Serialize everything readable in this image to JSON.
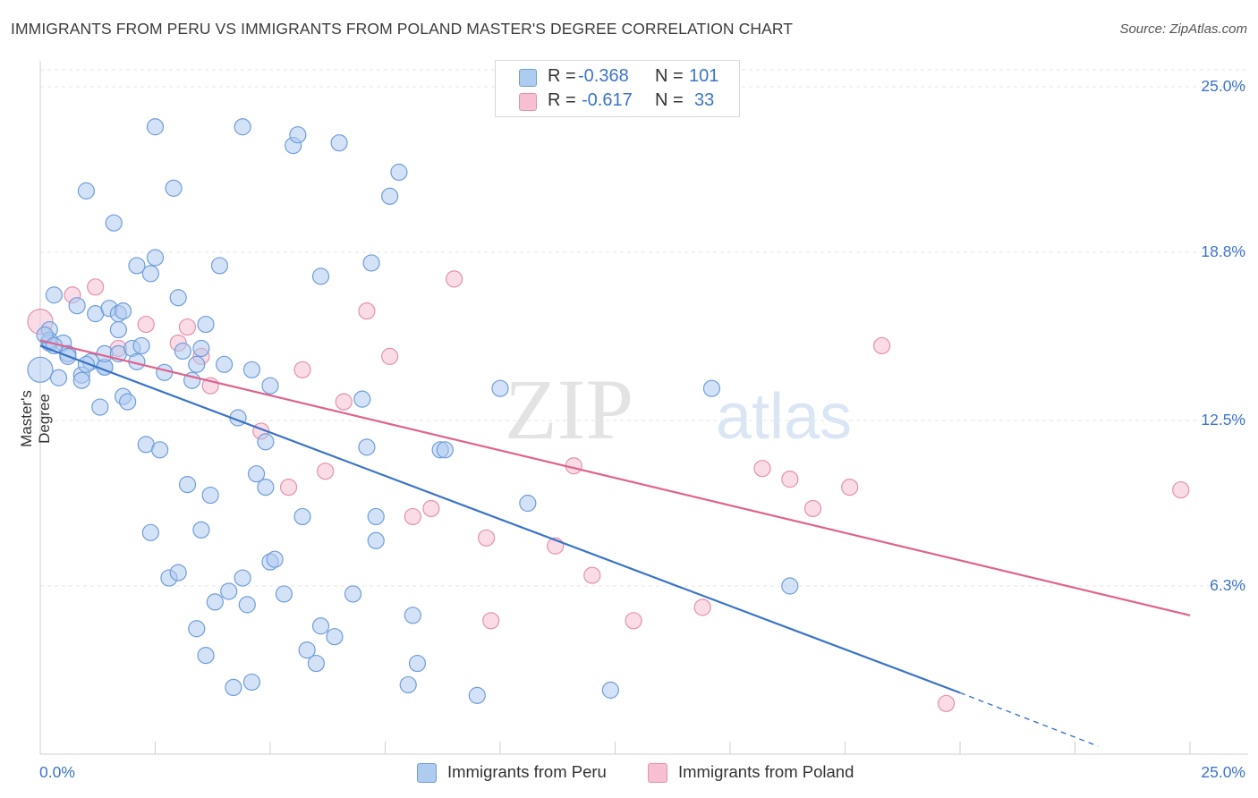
{
  "title": "IMMIGRANTS FROM PERU VS IMMIGRANTS FROM POLAND MASTER'S DEGREE CORRELATION CHART",
  "source": "Source: ZipAtlas.com",
  "watermark": "ZIPatlas",
  "colors": {
    "peru": "#3b74c8",
    "peru_fill": "#aecbf0",
    "poland": "#e0628e",
    "poland_fill": "#f6bfd2",
    "accent": "#3b74c8"
  },
  "legend": {
    "peru": {
      "r_label": "R =",
      "r_value": "-0.368",
      "n_label": "N =",
      "n_value": "101"
    },
    "poland": {
      "r_label": "R =",
      "r_value": "-0.617",
      "n_label": "N =",
      "n_value": "33"
    }
  },
  "chart_data": {
    "type": "scatter",
    "title": "IMMIGRANTS FROM PERU VS IMMIGRANTS FROM POLAND MASTER'S DEGREE CORRELATION CHART",
    "xlabel": "",
    "ylabel": "Master's Degree",
    "xlim": [
      0,
      25
    ],
    "ylim": [
      0,
      26.5
    ],
    "x_tick_labels": [
      "0.0%",
      "25.0%"
    ],
    "y_ticks": [
      6.3,
      12.5,
      18.8,
      25.0
    ],
    "y_tick_labels": [
      "6.3%",
      "12.5%",
      "18.8%",
      "25.0%"
    ],
    "grid": "horizontal dashed",
    "legend_position": "top-center",
    "series": [
      {
        "name": "Immigrants from Peru",
        "color": "#3b74c8",
        "points": [
          [
            0.0,
            14.4
          ],
          [
            0.2,
            15.9
          ],
          [
            0.2,
            15.4
          ],
          [
            0.3,
            17.2
          ],
          [
            0.4,
            14.1
          ],
          [
            0.5,
            15.4
          ],
          [
            0.6,
            15.0
          ],
          [
            0.6,
            14.9
          ],
          [
            0.8,
            16.8
          ],
          [
            0.9,
            14.2
          ],
          [
            0.9,
            14.0
          ],
          [
            1.0,
            21.1
          ],
          [
            1.1,
            14.7
          ],
          [
            1.2,
            16.5
          ],
          [
            1.3,
            13.0
          ],
          [
            1.4,
            14.5
          ],
          [
            1.4,
            14.5
          ],
          [
            1.4,
            15.0
          ],
          [
            1.5,
            16.7
          ],
          [
            1.6,
            19.9
          ],
          [
            1.7,
            15.9
          ],
          [
            1.7,
            15.0
          ],
          [
            1.7,
            16.5
          ],
          [
            1.8,
            16.6
          ],
          [
            1.8,
            13.4
          ],
          [
            1.9,
            13.2
          ],
          [
            2.0,
            15.2
          ],
          [
            2.1,
            14.7
          ],
          [
            2.1,
            18.3
          ],
          [
            2.2,
            15.3
          ],
          [
            2.3,
            11.6
          ],
          [
            2.4,
            18.0
          ],
          [
            2.4,
            8.3
          ],
          [
            2.5,
            23.5
          ],
          [
            2.5,
            18.6
          ],
          [
            2.6,
            11.4
          ],
          [
            2.7,
            14.3
          ],
          [
            2.8,
            6.6
          ],
          [
            2.9,
            21.2
          ],
          [
            3.0,
            6.8
          ],
          [
            3.0,
            17.1
          ],
          [
            3.1,
            15.1
          ],
          [
            3.2,
            10.1
          ],
          [
            3.3,
            14.0
          ],
          [
            3.4,
            14.6
          ],
          [
            3.4,
            4.7
          ],
          [
            3.5,
            15.2
          ],
          [
            3.5,
            8.4
          ],
          [
            3.6,
            16.1
          ],
          [
            3.6,
            3.7
          ],
          [
            3.7,
            9.7
          ],
          [
            3.8,
            5.7
          ],
          [
            3.9,
            18.3
          ],
          [
            4.0,
            14.6
          ],
          [
            4.1,
            6.1
          ],
          [
            4.2,
            2.5
          ],
          [
            4.3,
            12.6
          ],
          [
            4.4,
            23.5
          ],
          [
            4.4,
            6.6
          ],
          [
            4.5,
            5.6
          ],
          [
            4.6,
            2.7
          ],
          [
            4.6,
            14.4
          ],
          [
            4.7,
            10.5
          ],
          [
            4.9,
            10.0
          ],
          [
            4.9,
            11.7
          ],
          [
            5.0,
            13.8
          ],
          [
            5.0,
            7.2
          ],
          [
            5.1,
            7.3
          ],
          [
            5.3,
            6.0
          ],
          [
            5.5,
            22.8
          ],
          [
            5.6,
            23.2
          ],
          [
            5.7,
            8.9
          ],
          [
            5.8,
            3.9
          ],
          [
            6.0,
            3.4
          ],
          [
            6.1,
            4.8
          ],
          [
            6.1,
            17.9
          ],
          [
            6.4,
            4.4
          ],
          [
            6.5,
            22.9
          ],
          [
            6.8,
            6.0
          ],
          [
            7.0,
            13.3
          ],
          [
            7.1,
            11.5
          ],
          [
            7.2,
            18.4
          ],
          [
            7.3,
            8.0
          ],
          [
            7.3,
            8.9
          ],
          [
            7.6,
            20.9
          ],
          [
            7.8,
            21.8
          ],
          [
            8.0,
            2.6
          ],
          [
            8.1,
            5.2
          ],
          [
            8.2,
            3.4
          ],
          [
            8.7,
            11.4
          ],
          [
            8.8,
            11.4
          ],
          [
            9.5,
            2.2
          ],
          [
            10.0,
            13.7
          ],
          [
            10.6,
            9.4
          ],
          [
            12.4,
            2.4
          ],
          [
            14.6,
            13.7
          ],
          [
            16.3,
            6.3
          ],
          [
            0.2,
            15.5
          ],
          [
            0.1,
            15.7
          ],
          [
            0.3,
            15.3
          ],
          [
            1.0,
            14.6
          ]
        ],
        "trend": {
          "x0": 0.0,
          "y0": 15.3,
          "x1": 20.0,
          "y1": 2.3,
          "dashed_to": {
            "x": 23.0,
            "y": 0.3
          }
        }
      },
      {
        "name": "Immigrants from Poland",
        "color": "#e0628e",
        "points": [
          [
            0.0,
            16.2
          ],
          [
            0.7,
            17.2
          ],
          [
            1.2,
            17.5
          ],
          [
            1.7,
            15.2
          ],
          [
            2.3,
            16.1
          ],
          [
            3.0,
            15.4
          ],
          [
            3.2,
            16.0
          ],
          [
            3.5,
            14.9
          ],
          [
            3.7,
            13.8
          ],
          [
            4.8,
            12.1
          ],
          [
            5.4,
            10.0
          ],
          [
            5.7,
            14.4
          ],
          [
            6.2,
            10.6
          ],
          [
            6.6,
            13.2
          ],
          [
            7.1,
            16.6
          ],
          [
            7.6,
            14.9
          ],
          [
            8.1,
            8.9
          ],
          [
            8.5,
            9.2
          ],
          [
            9.0,
            17.8
          ],
          [
            9.7,
            8.1
          ],
          [
            9.8,
            5.0
          ],
          [
            11.2,
            7.8
          ],
          [
            11.6,
            10.8
          ],
          [
            12.0,
            6.7
          ],
          [
            12.9,
            5.0
          ],
          [
            14.4,
            5.5
          ],
          [
            15.7,
            10.7
          ],
          [
            16.3,
            10.3
          ],
          [
            16.8,
            9.2
          ],
          [
            17.6,
            10.0
          ],
          [
            18.3,
            15.3
          ],
          [
            19.7,
            1.9
          ],
          [
            24.8,
            9.9
          ]
        ],
        "trend": {
          "x0": 0.0,
          "y0": 15.5,
          "x1": 25.0,
          "y1": 5.2
        }
      }
    ]
  },
  "bottom_legend": {
    "peru_label": "Immigrants from Peru",
    "poland_label": "Immigrants from Poland"
  }
}
